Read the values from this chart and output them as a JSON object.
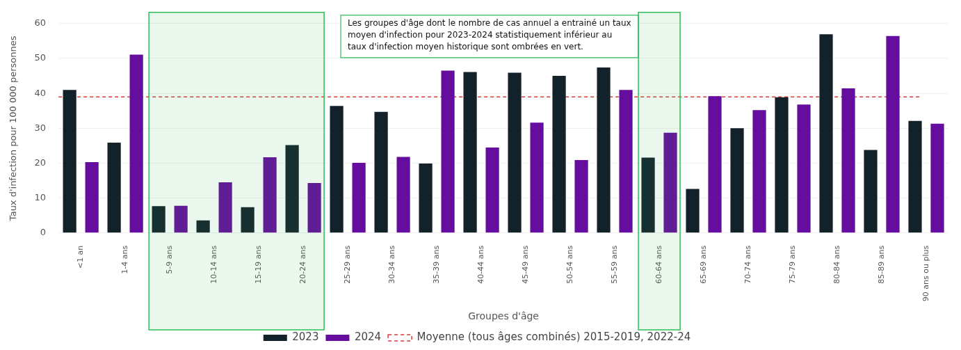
{
  "chart_data": {
    "type": "bar",
    "xlabel": "Groupes d'âge",
    "ylabel": "Taux d'infection pour 100 000 personnes",
    "categories": [
      "<1 an",
      "1-4 ans",
      "5-9 ans",
      "10-14 ans",
      "15-19 ans",
      "20-24 ans",
      "25-29 ans",
      "30-34 ans",
      "35-39 ans",
      "40-44 ans",
      "45-49 ans",
      "50-54 ans",
      "55-59 ans",
      "60-64 ans",
      "65-69 ans",
      "70-74 ans",
      "75-79 ans",
      "80-84 ans",
      "85-89 ans",
      "90 ans ou plus"
    ],
    "series": [
      {
        "name": "2023",
        "color": "#13212b",
        "values": [
          41,
          25.9,
          7.7,
          3.6,
          7.4,
          25.2,
          36.4,
          34.7,
          19.9,
          46.1,
          45.9,
          45.0,
          47.4,
          21.6,
          12.6,
          30.0,
          38.9,
          56.9,
          23.8,
          32.1
        ]
      },
      {
        "name": "2024",
        "color": "#650d9e",
        "values": [
          20.3,
          51.1,
          7.8,
          14.5,
          21.7,
          14.3,
          20.1,
          21.8,
          46.5,
          24.5,
          31.6,
          20.9,
          41.0,
          28.7,
          39.2,
          35.2,
          36.8,
          41.4,
          56.4,
          31.3
        ]
      }
    ],
    "ylim": [
      0,
      60
    ],
    "yticks": [
      0,
      10,
      20,
      30,
      40,
      50,
      60
    ],
    "grid": "y",
    "legend": "bottom",
    "ref_lines": [
      {
        "axis": "y",
        "value": 39,
        "label": "Moyenne (tous âges combinés) 2015-2019, 2022-24",
        "color": "#d93a3a",
        "line_style": "dashed"
      }
    ],
    "bands": [
      {
        "axis": "x",
        "from": "5-9 ans",
        "to": "20-24 ans",
        "color": "#2ebd59"
      },
      {
        "axis": "x",
        "from": "60-64 ans",
        "to": "60-64 ans",
        "color": "#2ebd59"
      }
    ],
    "annotations": [
      "Les groupes d'âge dont le nombre de cas annuel a entrainé un taux moyen d'infection pour 2023-2024 statistiquement inférieur au taux d'infection moyen historique sont ombrées en vert."
    ]
  }
}
